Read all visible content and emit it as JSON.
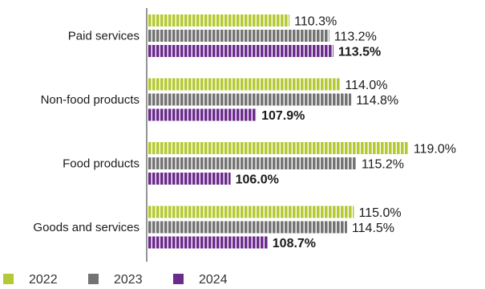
{
  "chart_data": {
    "type": "bar",
    "orientation": "horizontal",
    "title": "",
    "xlabel": "",
    "ylabel": "",
    "grid": false,
    "legend_position": "bottom-left",
    "xlim": [
      100,
      120
    ],
    "categories": [
      "Paid services",
      "Non-food products",
      "Food products",
      "Goods and services"
    ],
    "series": [
      {
        "name": "2022",
        "color": "#b5c932",
        "values": [
          110.3,
          114.0,
          119.0,
          115.0
        ],
        "labels": [
          "110.3%",
          "114.0%",
          "119.0%",
          "115.0%"
        ]
      },
      {
        "name": "2023",
        "color": "#737373",
        "values": [
          113.2,
          114.8,
          115.2,
          114.5
        ],
        "labels": [
          "113.2%",
          "114.8%",
          "115.2%",
          "114.5%"
        ]
      },
      {
        "name": "2024",
        "color": "#6b2a8c",
        "values": [
          113.5,
          107.9,
          106.0,
          108.7
        ],
        "labels": [
          "113.5%",
          "107.9%",
          "106.0%",
          "108.7%"
        ],
        "label_color": "#6b2a8c",
        "emphasized": true
      }
    ]
  }
}
